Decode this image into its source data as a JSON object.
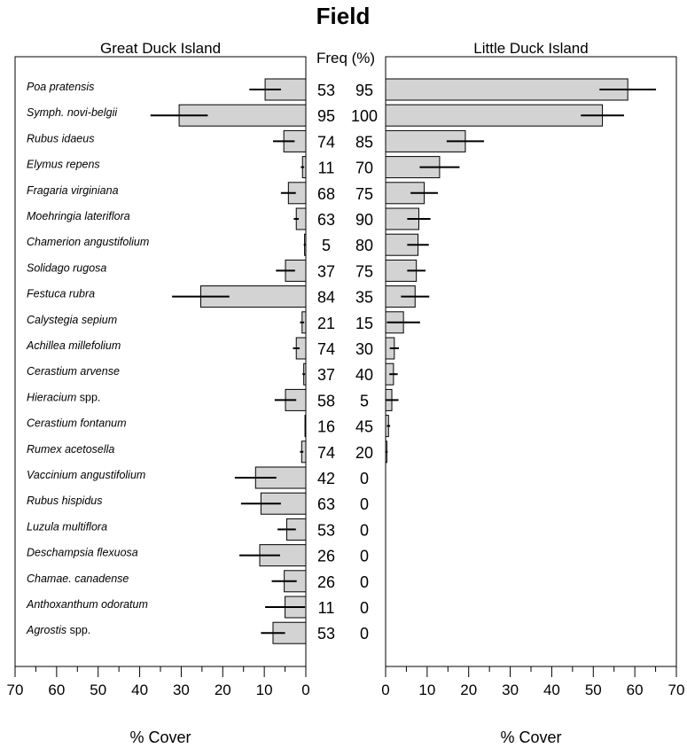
{
  "chart_data": {
    "type": "bar",
    "title": "Field",
    "freq_header": "Freq (%)",
    "species": [
      "Poa pratensis",
      "Symph. novi-belgii",
      "Rubus idaeus",
      "Elymus repens",
      "Fragaria virginiana",
      "Moehringia lateriflora",
      "Chamerion angustifolium",
      "Solidago rugosa",
      "Festuca rubra",
      "Calystegia sepium",
      "Achillea millefolium",
      "Cerastium arvense",
      "Hieracium spp.",
      "Cerastium fontanum",
      "Rumex acetosella",
      "Vaccinium angustifolium",
      "Rubus hispidus",
      "Luzula multiflora",
      "Deschampsia flexuosa",
      "Chamae. canadense",
      "Anthoxanthum odoratum",
      "Agrostis spp."
    ],
    "panels": [
      {
        "name": "Great Duck Island",
        "xlabel": "% Cover",
        "xlim": [
          0,
          70
        ],
        "xticks": [
          70,
          60,
          50,
          40,
          30,
          20,
          10,
          0
        ],
        "values": [
          9.8,
          30.5,
          5.3,
          0.8,
          4.2,
          2.3,
          0.3,
          4.9,
          25.3,
          0.9,
          2.3,
          0.5,
          4.9,
          0.2,
          1.0,
          12.1,
          10.8,
          4.6,
          11.1,
          5.2,
          5.0,
          7.9
        ],
        "errors": [
          3.8,
          6.9,
          2.6,
          0.4,
          1.8,
          0.6,
          0.2,
          2.3,
          6.9,
          0.5,
          0.8,
          0.3,
          2.6,
          0.1,
          0.4,
          5.0,
          4.8,
          2.2,
          4.9,
          3.0,
          4.8,
          2.9
        ],
        "freq": [
          53,
          95,
          74,
          11,
          68,
          63,
          5,
          37,
          84,
          21,
          74,
          37,
          58,
          16,
          74,
          42,
          63,
          53,
          26,
          26,
          11,
          53
        ]
      },
      {
        "name": "Little Duck Island",
        "xlabel": "% Cover",
        "xlim": [
          0,
          70
        ],
        "xticks": [
          0,
          10,
          20,
          30,
          40,
          50,
          60,
          70
        ],
        "values": [
          58.3,
          52.2,
          19.2,
          13.0,
          9.3,
          8.0,
          7.8,
          7.4,
          7.1,
          4.3,
          2.1,
          1.9,
          1.5,
          0.7,
          0.3,
          0,
          0,
          0,
          0,
          0,
          0,
          0
        ],
        "errors": [
          6.8,
          5.2,
          4.5,
          4.8,
          3.3,
          2.8,
          2.6,
          2.2,
          3.4,
          4.0,
          1.1,
          1.0,
          1.6,
          0.4,
          0.2,
          0,
          0,
          0,
          0,
          0,
          0,
          0
        ],
        "freq": [
          95,
          100,
          85,
          70,
          75,
          90,
          80,
          75,
          35,
          15,
          30,
          40,
          5,
          45,
          20,
          0,
          0,
          0,
          0,
          0,
          0,
          0
        ]
      }
    ],
    "bar_color": "#d3d3d3"
  }
}
